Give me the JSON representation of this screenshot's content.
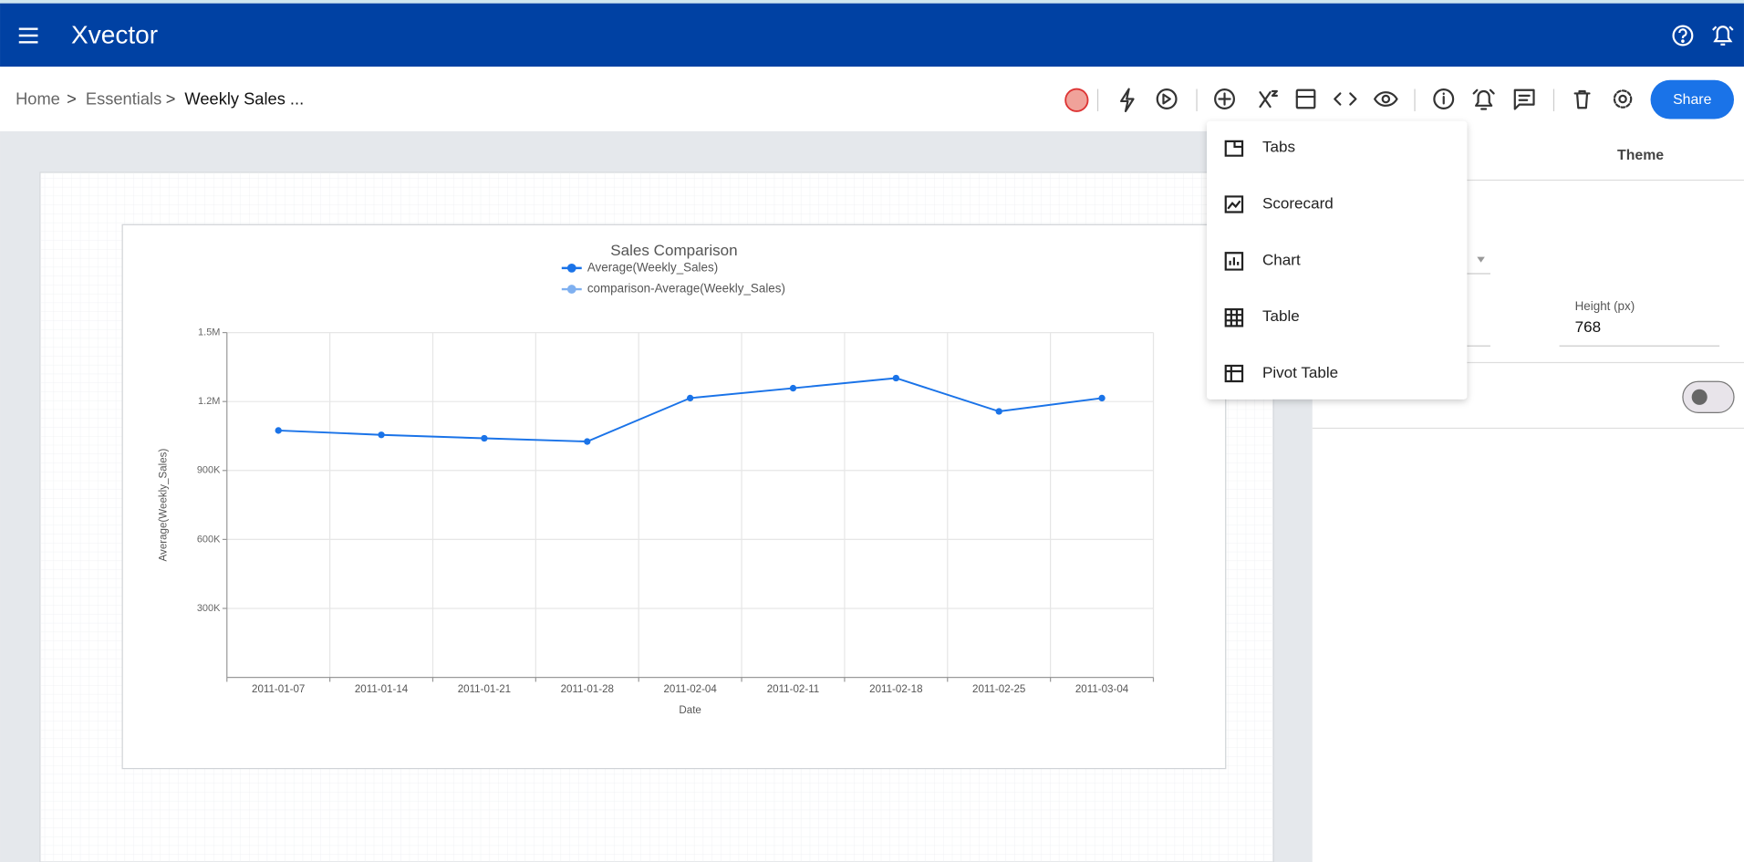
{
  "header": {
    "logo": "Xvector"
  },
  "breadcrumb": {
    "items": [
      "Home",
      "Essentials",
      "Weekly Sales ..."
    ],
    "separator": ">"
  },
  "toolbar": {
    "share": "Share"
  },
  "panel": {
    "tab": "Theme",
    "height_label": "Height (px)",
    "height_value": "768"
  },
  "menu": {
    "items": [
      "Tabs",
      "Scorecard",
      "Chart",
      "Table",
      "Pivot Table"
    ]
  },
  "chart_data": {
    "type": "line",
    "title": "Sales Comparison",
    "x_label": "Date",
    "y_label": "Average(Weekly_Sales)",
    "categories": [
      "2011-01-07",
      "2011-01-14",
      "2011-01-21",
      "2011-01-28",
      "2011-02-04",
      "2011-02-11",
      "2011-02-18",
      "2011-02-25",
      "2011-03-04"
    ],
    "series": [
      {
        "name": "Average(Weekly_Sales)",
        "color": "#1a73e8",
        "values": [
          1074000,
          1055000,
          1040000,
          1026000,
          1215000,
          1258000,
          1302000,
          1157000,
          1215000
        ]
      },
      {
        "name": "comparison-Average(Weekly_Sales)",
        "color": "#7fb0f0",
        "values": [
          null,
          null,
          null,
          null,
          null,
          null,
          null,
          null,
          null
        ]
      }
    ],
    "ylim": [
      0,
      1500000
    ],
    "yticks": [
      {
        "value": 300000,
        "label": "300K"
      },
      {
        "value": 600000,
        "label": "600K"
      },
      {
        "value": 900000,
        "label": "900K"
      },
      {
        "value": 1200000,
        "label": "1.2M"
      },
      {
        "value": 1500000,
        "label": "1.5M"
      }
    ],
    "grid": true
  }
}
